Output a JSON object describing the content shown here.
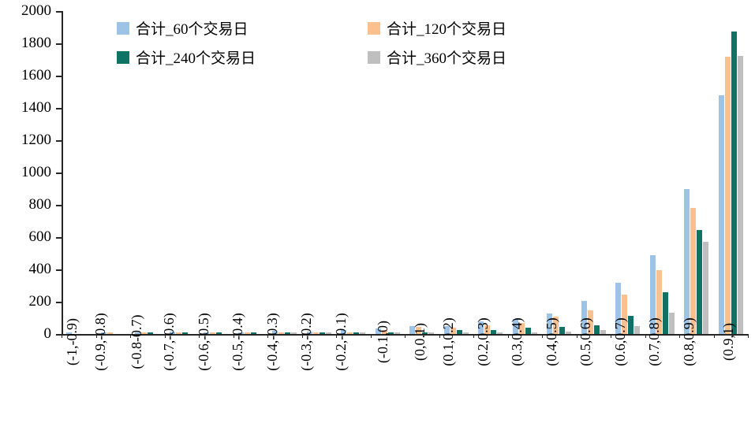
{
  "chart_data": {
    "type": "bar",
    "title": "",
    "xlabel": "",
    "ylabel": "",
    "ylim": [
      0,
      2000
    ],
    "ytick_step": 200,
    "grid": false,
    "legend_position": "top-left",
    "axis_color": "#262626",
    "categories": [
      "(-1,-0.9)",
      "(-0.9,-0.8)",
      "(-0.8-0.7)",
      "(-0.7,-0.6)",
      "(-0.6,-0.5)",
      "(-0.5,-0.4)",
      "(-0.4,-0.3)",
      "(-0.3,-0.2)",
      "(-0.2,-0.1)",
      "(-0.1,0)",
      "(0,0.1)",
      "(0.1,0.2)",
      "(0.2,0.3)",
      "(0.3,0.4)",
      "(0.4,0.5)",
      "(0.5,0.6)",
      "(0.6,0.7)",
      "(0.7,0.8)",
      "(0.8,0.9)",
      "(0.9,1)"
    ],
    "series": [
      {
        "name": "合计_60个交易日",
        "color": "#9DC3E6",
        "values": [
          2,
          5,
          8,
          13,
          12,
          7,
          18,
          14,
          22,
          33,
          48,
          50,
          78,
          95,
          125,
          205,
          315,
          490,
          900,
          1480
        ]
      },
      {
        "name": "合计_120个交易日",
        "color": "#FAC090",
        "values": [
          0,
          2,
          4,
          3,
          3,
          3,
          5,
          5,
          6,
          25,
          42,
          40,
          55,
          70,
          105,
          145,
          245,
          395,
          780,
          1715
        ]
      },
      {
        "name": "合计_240个交易日",
        "color": "#0E7265",
        "values": [
          0,
          0,
          2,
          2,
          2,
          2,
          3,
          3,
          3,
          6,
          10,
          25,
          25,
          40,
          45,
          55,
          110,
          260,
          645,
          1875
        ]
      },
      {
        "name": "合计_360个交易日",
        "color": "#BFBFBF",
        "values": [
          0,
          0,
          0,
          0,
          0,
          0,
          2,
          2,
          2,
          3,
          5,
          8,
          10,
          12,
          15,
          25,
          50,
          130,
          570,
          1720
        ]
      }
    ],
    "ytick_labels": [
      "0",
      "200",
      "400",
      "600",
      "800",
      "1000",
      "1200",
      "1400",
      "1600",
      "1800",
      "2000"
    ]
  }
}
